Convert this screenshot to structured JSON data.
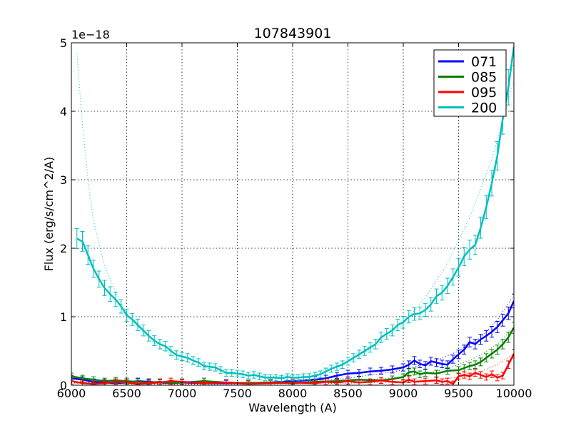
{
  "chart_data": {
    "type": "line",
    "title": "107843901",
    "xlabel": "Wavelength (A)",
    "ylabel": "Flux (erg/s/cm^2/A)",
    "y_offset_label": "1e−18",
    "xlim": [
      6000,
      10000
    ],
    "ylim": [
      0,
      5
    ],
    "grid": true,
    "legend_position": "top-right",
    "x_ticks": [
      6000,
      6500,
      7000,
      7500,
      8000,
      8500,
      9000,
      9500,
      10000
    ],
    "y_ticks": [
      0,
      1,
      2,
      3,
      4,
      5
    ],
    "series": [
      {
        "name": "071",
        "color": "#0000ff",
        "points": [
          [
            6000,
            0.1
          ],
          [
            6100,
            0.08
          ],
          [
            6200,
            0.05
          ],
          [
            6300,
            0.04
          ],
          [
            6400,
            0.03
          ],
          [
            6500,
            0.04
          ],
          [
            6600,
            0.06
          ],
          [
            6700,
            0.05
          ],
          [
            6800,
            0.04
          ],
          [
            6900,
            0.03
          ],
          [
            7000,
            0.04
          ],
          [
            7200,
            0.03
          ],
          [
            7400,
            0.03
          ],
          [
            7600,
            0.03
          ],
          [
            7800,
            0.04
          ],
          [
            8000,
            0.06
          ],
          [
            8200,
            0.08
          ],
          [
            8300,
            0.1
          ],
          [
            8400,
            0.14
          ],
          [
            8500,
            0.17
          ],
          [
            8600,
            0.18
          ],
          [
            8700,
            0.2
          ],
          [
            8800,
            0.21
          ],
          [
            8900,
            0.23
          ],
          [
            9000,
            0.26
          ],
          [
            9050,
            0.3
          ],
          [
            9100,
            0.36
          ],
          [
            9150,
            0.31
          ],
          [
            9200,
            0.29
          ],
          [
            9250,
            0.35
          ],
          [
            9300,
            0.33
          ],
          [
            9350,
            0.31
          ],
          [
            9400,
            0.3
          ],
          [
            9450,
            0.38
          ],
          [
            9500,
            0.45
          ],
          [
            9550,
            0.52
          ],
          [
            9600,
            0.63
          ],
          [
            9650,
            0.6
          ],
          [
            9700,
            0.67
          ],
          [
            9750,
            0.72
          ],
          [
            9800,
            0.78
          ],
          [
            9850,
            0.85
          ],
          [
            9900,
            0.95
          ],
          [
            9950,
            1.05
          ],
          [
            10000,
            1.23
          ]
        ],
        "model": [
          [
            6000,
            0.05
          ],
          [
            7000,
            0.03
          ],
          [
            8000,
            0.05
          ],
          [
            8500,
            0.1
          ],
          [
            9000,
            0.22
          ],
          [
            9300,
            0.36
          ],
          [
            9500,
            0.5
          ],
          [
            9700,
            0.7
          ],
          [
            9850,
            0.95
          ],
          [
            10000,
            1.32
          ]
        ]
      },
      {
        "name": "085",
        "color": "#008000",
        "points": [
          [
            6000,
            0.13
          ],
          [
            6100,
            0.1
          ],
          [
            6200,
            0.08
          ],
          [
            6300,
            0.06
          ],
          [
            6400,
            0.07
          ],
          [
            6500,
            0.06
          ],
          [
            6600,
            0.05
          ],
          [
            6700,
            0.04
          ],
          [
            6800,
            0.05
          ],
          [
            6900,
            0.03
          ],
          [
            7000,
            0.04
          ],
          [
            7200,
            0.06
          ],
          [
            7400,
            0.04
          ],
          [
            7600,
            0.03
          ],
          [
            7800,
            0.04
          ],
          [
            8000,
            0.03
          ],
          [
            8200,
            0.05
          ],
          [
            8400,
            0.06
          ],
          [
            8600,
            0.08
          ],
          [
            8800,
            0.07
          ],
          [
            8900,
            0.09
          ],
          [
            9000,
            0.12
          ],
          [
            9050,
            0.19
          ],
          [
            9100,
            0.2
          ],
          [
            9150,
            0.16
          ],
          [
            9200,
            0.18
          ],
          [
            9300,
            0.17
          ],
          [
            9400,
            0.21
          ],
          [
            9500,
            0.22
          ],
          [
            9550,
            0.25
          ],
          [
            9600,
            0.28
          ],
          [
            9650,
            0.3
          ],
          [
            9700,
            0.34
          ],
          [
            9750,
            0.4
          ],
          [
            9800,
            0.46
          ],
          [
            9850,
            0.52
          ],
          [
            9900,
            0.6
          ],
          [
            9950,
            0.7
          ],
          [
            10000,
            0.84
          ]
        ],
        "model": [
          [
            6000,
            0.04
          ],
          [
            7000,
            0.02
          ],
          [
            8000,
            0.03
          ],
          [
            8500,
            0.06
          ],
          [
            9000,
            0.12
          ],
          [
            9300,
            0.2
          ],
          [
            9500,
            0.3
          ],
          [
            9700,
            0.44
          ],
          [
            9850,
            0.6
          ],
          [
            10000,
            0.85
          ]
        ]
      },
      {
        "name": "095",
        "color": "#ff0000",
        "points": [
          [
            6000,
            0.06
          ],
          [
            6100,
            0.03
          ],
          [
            6200,
            0.02
          ],
          [
            6300,
            0.03
          ],
          [
            6400,
            0.05
          ],
          [
            6500,
            0.04
          ],
          [
            6600,
            0.02
          ],
          [
            6700,
            0.03
          ],
          [
            6800,
            0.04
          ],
          [
            6900,
            0.06
          ],
          [
            7000,
            0.05
          ],
          [
            7200,
            0.03
          ],
          [
            7400,
            0.04
          ],
          [
            7600,
            0.02
          ],
          [
            7800,
            0.03
          ],
          [
            8000,
            0.04
          ],
          [
            8200,
            0.03
          ],
          [
            8300,
            0.05
          ],
          [
            8400,
            0.04
          ],
          [
            8500,
            0.06
          ],
          [
            8600,
            0.04
          ],
          [
            8700,
            0.05
          ],
          [
            8800,
            0.07
          ],
          [
            8900,
            0.05
          ],
          [
            9000,
            0.04
          ],
          [
            9050,
            0.08
          ],
          [
            9100,
            0.05
          ],
          [
            9200,
            0.06
          ],
          [
            9300,
            0.07
          ],
          [
            9350,
            0.05
          ],
          [
            9400,
            0.06
          ],
          [
            9450,
            0.02
          ],
          [
            9500,
            0.13
          ],
          [
            9550,
            0.15
          ],
          [
            9600,
            0.13
          ],
          [
            9650,
            0.18
          ],
          [
            9700,
            0.15
          ],
          [
            9750,
            0.12
          ],
          [
            9800,
            0.16
          ],
          [
            9850,
            0.11
          ],
          [
            9900,
            0.14
          ],
          [
            9950,
            0.3
          ],
          [
            10000,
            0.46
          ]
        ],
        "model": [
          [
            6000,
            0.03
          ],
          [
            7000,
            0.01
          ],
          [
            8000,
            0.02
          ],
          [
            8500,
            0.03
          ],
          [
            9000,
            0.05
          ],
          [
            9300,
            0.08
          ],
          [
            9500,
            0.12
          ],
          [
            9700,
            0.2
          ],
          [
            9850,
            0.3
          ],
          [
            10000,
            0.46
          ]
        ]
      },
      {
        "name": "200",
        "color": "#00bfbf",
        "points": [
          [
            6050,
            2.14
          ],
          [
            6100,
            2.1
          ],
          [
            6150,
            1.9
          ],
          [
            6200,
            1.7
          ],
          [
            6250,
            1.55
          ],
          [
            6300,
            1.42
          ],
          [
            6350,
            1.33
          ],
          [
            6400,
            1.25
          ],
          [
            6450,
            1.15
          ],
          [
            6500,
            1.02
          ],
          [
            6550,
            0.96
          ],
          [
            6600,
            0.88
          ],
          [
            6650,
            0.8
          ],
          [
            6700,
            0.72
          ],
          [
            6750,
            0.65
          ],
          [
            6800,
            0.6
          ],
          [
            6850,
            0.57
          ],
          [
            6900,
            0.5
          ],
          [
            6950,
            0.44
          ],
          [
            7000,
            0.42
          ],
          [
            7050,
            0.4
          ],
          [
            7100,
            0.36
          ],
          [
            7150,
            0.33
          ],
          [
            7200,
            0.28
          ],
          [
            7250,
            0.27
          ],
          [
            7300,
            0.26
          ],
          [
            7350,
            0.22
          ],
          [
            7400,
            0.18
          ],
          [
            7450,
            0.18
          ],
          [
            7500,
            0.17
          ],
          [
            7550,
            0.16
          ],
          [
            7600,
            0.14
          ],
          [
            7650,
            0.15
          ],
          [
            7700,
            0.13
          ],
          [
            7750,
            0.11
          ],
          [
            7800,
            0.11
          ],
          [
            7850,
            0.11
          ],
          [
            7900,
            0.1
          ],
          [
            7950,
            0.12
          ],
          [
            8000,
            0.11
          ],
          [
            8050,
            0.11
          ],
          [
            8100,
            0.12
          ],
          [
            8150,
            0.12
          ],
          [
            8200,
            0.14
          ],
          [
            8250,
            0.16
          ],
          [
            8300,
            0.2
          ],
          [
            8350,
            0.24
          ],
          [
            8400,
            0.27
          ],
          [
            8450,
            0.3
          ],
          [
            8500,
            0.35
          ],
          [
            8550,
            0.4
          ],
          [
            8600,
            0.45
          ],
          [
            8650,
            0.5
          ],
          [
            8700,
            0.55
          ],
          [
            8750,
            0.6
          ],
          [
            8800,
            0.7
          ],
          [
            8850,
            0.75
          ],
          [
            8900,
            0.8
          ],
          [
            8950,
            0.88
          ],
          [
            9000,
            0.92
          ],
          [
            9050,
            1.0
          ],
          [
            9100,
            1.04
          ],
          [
            9150,
            1.05
          ],
          [
            9200,
            1.1
          ],
          [
            9250,
            1.18
          ],
          [
            9300,
            1.3
          ],
          [
            9350,
            1.35
          ],
          [
            9400,
            1.45
          ],
          [
            9450,
            1.58
          ],
          [
            9500,
            1.72
          ],
          [
            9550,
            1.88
          ],
          [
            9600,
            1.98
          ],
          [
            9650,
            2.05
          ],
          [
            9700,
            2.3
          ],
          [
            9750,
            2.6
          ],
          [
            9800,
            2.95
          ],
          [
            9850,
            3.35
          ],
          [
            9900,
            3.9
          ],
          [
            9950,
            4.35
          ],
          [
            10000,
            4.95
          ]
        ],
        "model": [
          [
            6050,
            4.85
          ],
          [
            6100,
            3.8
          ],
          [
            6150,
            3.0
          ],
          [
            6200,
            2.4
          ],
          [
            6300,
            1.75
          ],
          [
            6400,
            1.35
          ],
          [
            6500,
            1.05
          ],
          [
            6600,
            0.85
          ],
          [
            6700,
            0.68
          ],
          [
            6800,
            0.55
          ],
          [
            6900,
            0.45
          ],
          [
            7000,
            0.37
          ],
          [
            7200,
            0.26
          ],
          [
            7400,
            0.19
          ],
          [
            7600,
            0.15
          ],
          [
            7800,
            0.13
          ],
          [
            8000,
            0.14
          ],
          [
            8200,
            0.19
          ],
          [
            8400,
            0.28
          ],
          [
            8600,
            0.43
          ],
          [
            8800,
            0.62
          ],
          [
            9000,
            0.9
          ],
          [
            9200,
            1.28
          ],
          [
            9400,
            1.78
          ],
          [
            9600,
            2.45
          ],
          [
            9800,
            3.3
          ],
          [
            9900,
            3.85
          ],
          [
            10000,
            4.45
          ]
        ]
      }
    ]
  }
}
